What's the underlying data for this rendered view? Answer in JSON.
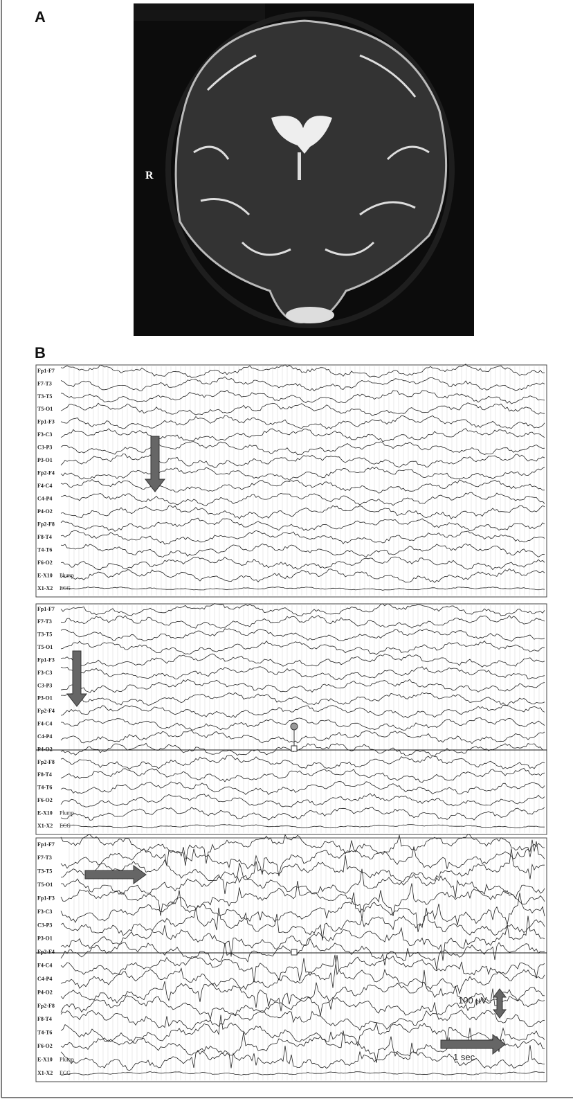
{
  "panel_a": {
    "label": "A",
    "side_marker": "R"
  },
  "panel_b": {
    "label": "B",
    "recordings": [
      {
        "channels": [
          "Fp1-F7",
          "F7-T3",
          "T3-T5",
          "T5-O1",
          "Fp1-F3",
          "F3-C3",
          "C3-P3",
          "P3-O1",
          "Fp2-F4",
          "F4-C4",
          "C4-P4",
          "P4-O2",
          "Fp2-F8",
          "F8-T4",
          "T4-T6",
          "F6-O2",
          "E-X10",
          "X1-X2"
        ],
        "extras": [
          "Plump",
          "ECG"
        ]
      },
      {
        "channels": [
          "Fp1-F7",
          "F7-T3",
          "T3-T5",
          "T5-O1",
          "Fp1-F3",
          "F3-C3",
          "C3-P3",
          "P3-O1",
          "Fp2-F4",
          "F4-C4",
          "C4-P4",
          "P4-O2",
          "Fp2-F8",
          "F8-T4",
          "T4-T6",
          "F6-O2",
          "E-X10",
          "X1-X2"
        ],
        "extras": [
          "Plump",
          "ECG"
        ]
      },
      {
        "channels": [
          "Fp1-F7",
          "F7-T3",
          "T3-T5",
          "T5-O1",
          "Fp1-F3",
          "F3-C3",
          "C3-P3",
          "P3-O1",
          "Fp2-F4",
          "F4-C4",
          "C4-P4",
          "P4-O2",
          "Fp2-F8",
          "F8-T4",
          "T4-T6",
          "F6-O2",
          "E-X10",
          "X1-X2"
        ],
        "extras": [
          "Plump",
          "ECG"
        ]
      }
    ],
    "scale_labels": {
      "amplitude": "100 µV",
      "time": "1 sec"
    }
  }
}
